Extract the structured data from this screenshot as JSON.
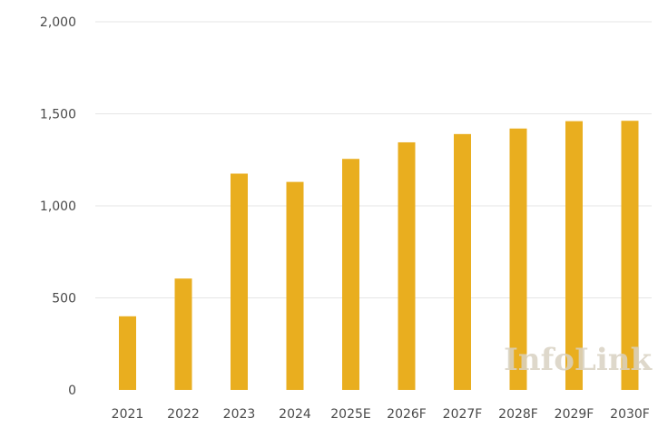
{
  "watermark": "InfoLink",
  "chart_data": {
    "type": "bar",
    "categories": [
      "2021",
      "2022",
      "2023",
      "2024",
      "2025E",
      "2026F",
      "2027F",
      "2028F",
      "2029F",
      "2030F"
    ],
    "values": [
      400,
      605,
      1175,
      1130,
      1255,
      1345,
      1390,
      1420,
      1460,
      1462
    ],
    "title": "",
    "xlabel": "",
    "ylabel": "",
    "ylim": [
      0,
      2000
    ],
    "yticks": [
      0,
      500,
      1000,
      1500,
      2000
    ],
    "ytick_labels": [
      "0",
      "500",
      "1,000",
      "1,500",
      "2,000"
    ],
    "grid": true,
    "bar_color": "#E9AE1F"
  }
}
